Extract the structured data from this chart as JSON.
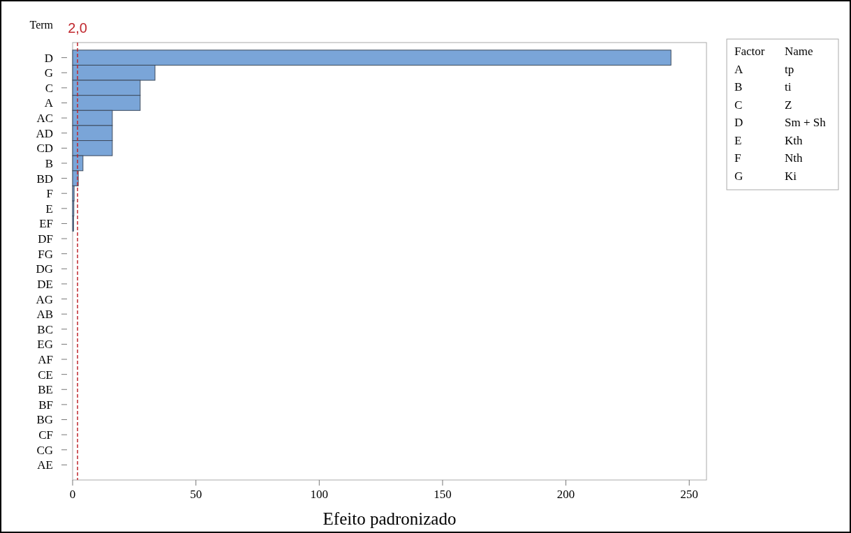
{
  "chart_data": {
    "type": "bar",
    "orientation": "horizontal",
    "xlabel": "Efeito padronizado",
    "ylabel": "Term",
    "categories": [
      "D",
      "G",
      "C",
      "A",
      "AC",
      "AD",
      "CD",
      "B",
      "BD",
      "F",
      "E",
      "EF",
      "DF",
      "FG",
      "DG",
      "DE",
      "AG",
      "AB",
      "BC",
      "EG",
      "AF",
      "CE",
      "BE",
      "BF",
      "BG",
      "CF",
      "CG",
      "AE"
    ],
    "values": [
      242.6,
      33.4,
      27.4,
      27.4,
      16.1,
      16.1,
      16.1,
      4.2,
      2.3,
      0.6,
      0.5,
      0.4,
      0,
      0,
      0,
      0,
      0,
      0,
      0,
      0,
      0,
      0,
      0,
      0,
      0,
      0,
      0,
      0
    ],
    "color": "#7aa5d8",
    "xlim": [
      0,
      257
    ],
    "xticks": [
      0,
      50,
      100,
      150,
      200,
      250
    ],
    "grid": false,
    "ref_lines": [
      {
        "axis": "x",
        "value": 2.0,
        "label": "2,0",
        "color": "#c0272d",
        "line_style": "dashed"
      }
    ],
    "annotations": [
      "Factor",
      "Name",
      "A",
      "tp",
      "B",
      "ti",
      "C",
      "Z",
      "D",
      "Sm + Sh",
      "E",
      "Kth",
      "F",
      "Nth",
      "G",
      "Ki"
    ]
  }
}
